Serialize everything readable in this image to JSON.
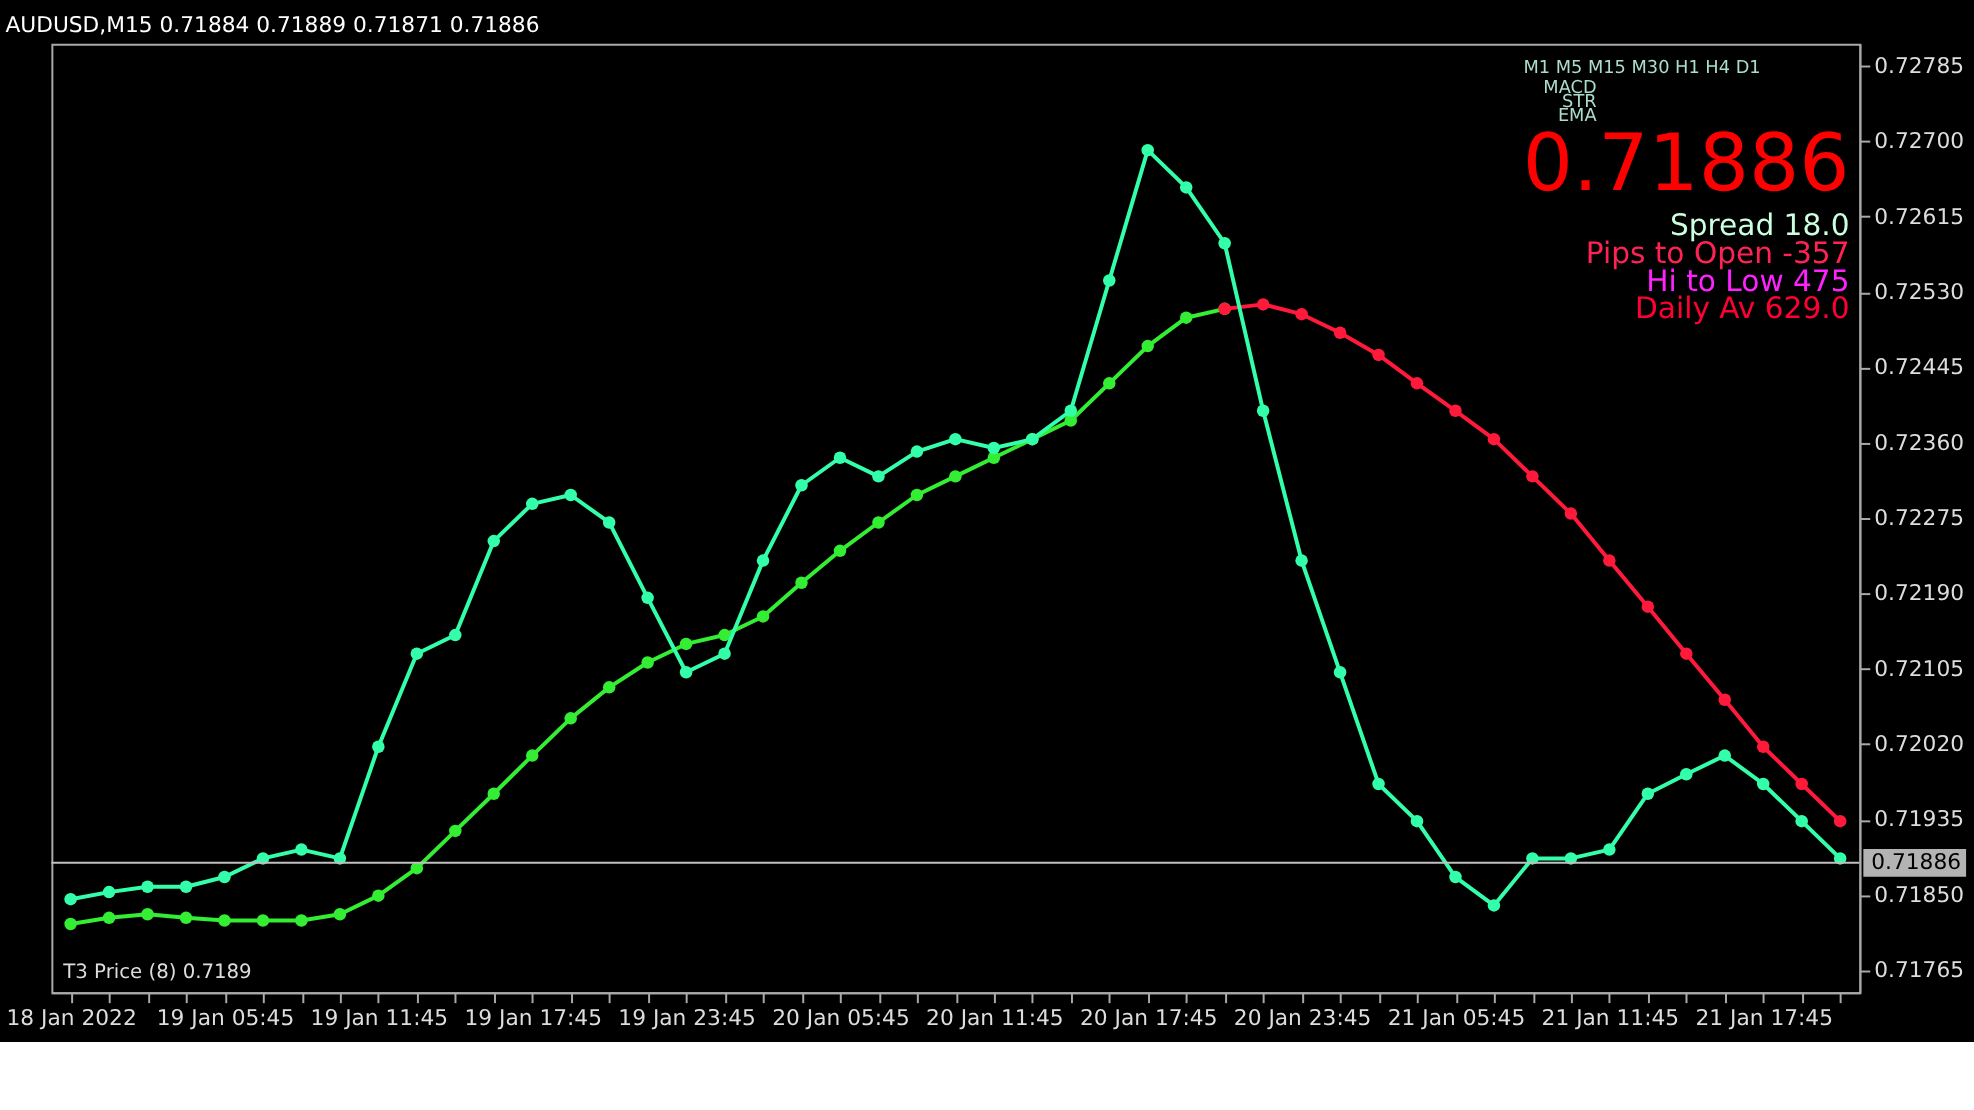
{
  "chart_data": {
    "type": "line",
    "title": "AUDUSD,M15  0.71884 0.71889 0.71871 0.71886",
    "categories": [
      "18 Jan 2022",
      null,
      null,
      null,
      "19 Jan 05:45",
      null,
      null,
      null,
      "19 Jan 11:45",
      null,
      null,
      null,
      "19 Jan 17:45",
      null,
      null,
      null,
      "19 Jan 23:45",
      null,
      null,
      null,
      "20 Jan 05:45",
      null,
      null,
      null,
      "20 Jan 11:45",
      null,
      null,
      null,
      "20 Jan 17:45",
      null,
      null,
      null,
      "20 Jan 23:45",
      null,
      null,
      null,
      "21 Jan 05:45",
      null,
      null,
      null,
      "21 Jan 11:45",
      null,
      null,
      null,
      "21 Jan 17:45",
      null,
      null
    ],
    "series": [
      {
        "color": "#33ee33",
        "values": [
          0.71817,
          0.71824,
          0.71828,
          0.71824,
          0.71821,
          0.71821,
          0.71821,
          0.71828,
          0.71849,
          0.7188,
          0.71922,
          0.71964,
          0.72007,
          0.72049,
          0.72084,
          0.72112,
          0.72133,
          0.72143,
          0.72164,
          0.72202,
          0.72238,
          0.7227,
          0.72301,
          0.72322,
          0.72343,
          0.72364,
          0.72385,
          0.72427,
          0.72469,
          0.72501,
          0.72511,
          null,
          null,
          null,
          null,
          null,
          null,
          null,
          null,
          null,
          null,
          null,
          null,
          null,
          null,
          null,
          null
        ]
      },
      {
        "color": "#ff1a3c",
        "values": [
          null,
          null,
          null,
          null,
          null,
          null,
          null,
          null,
          null,
          null,
          null,
          null,
          null,
          null,
          null,
          null,
          null,
          null,
          null,
          null,
          null,
          null,
          null,
          null,
          null,
          null,
          null,
          null,
          null,
          null,
          0.72511,
          0.72516,
          0.72505,
          0.72484,
          0.72459,
          0.72427,
          0.72396,
          0.72364,
          0.72322,
          0.7228,
          0.72227,
          0.72175,
          0.72122,
          0.7207,
          0.72017,
          0.71975,
          0.71933
        ]
      },
      {
        "color": "#33ffaa",
        "values": [
          0.71845,
          0.71853,
          0.71859,
          0.71859,
          0.7187,
          0.71891,
          0.71901,
          0.71891,
          0.72017,
          0.72122,
          0.72143,
          0.72249,
          0.72291,
          0.72301,
          0.7227,
          0.72185,
          0.72101,
          0.72122,
          0.72227,
          0.72312,
          0.72343,
          0.72322,
          0.7235,
          0.72364,
          0.72354,
          0.72364,
          0.72396,
          0.72543,
          0.7269,
          0.72648,
          0.72585,
          0.72396,
          0.72227,
          0.72101,
          0.71975,
          0.71933,
          0.7187,
          0.71838,
          0.71891,
          0.71891,
          0.71901,
          0.71964,
          0.71986,
          0.72007,
          0.71975,
          0.71933,
          0.71891
        ]
      }
    ],
    "ylim": [
      0.7174,
      0.7281
    ],
    "yticks": [
      0.72785,
      {
        "value": 0.727,
        "label": "0.72700"
      },
      0.72615,
      {
        "value": 0.7253,
        "label": "0.72530"
      },
      0.72445,
      {
        "value": 0.7236,
        "label": "0.72360"
      },
      0.72275,
      {
        "value": 0.7219,
        "label": "0.72190"
      },
      0.72105,
      {
        "value": 0.7202,
        "label": "0.72020"
      },
      0.71935,
      {
        "value": 0.7185,
        "label": "0.71850"
      },
      0.71765
    ],
    "ref_lines": [
      {
        "axis": "y",
        "value": 0.71886,
        "label": "0.71886",
        "color": "#c0c0c0"
      }
    ],
    "annotations": [
      "M1   M5   M15  M30  H1   H4   D1",
      "MACD",
      "STR",
      "EMA",
      "0.71886",
      "Spread 18.0",
      "Pips to Open -357",
      "Hi to Low 475",
      "Daily Av 629.0",
      "T3 Price (8) 0.7189"
    ],
    "marker": "circle",
    "grid": false
  }
}
